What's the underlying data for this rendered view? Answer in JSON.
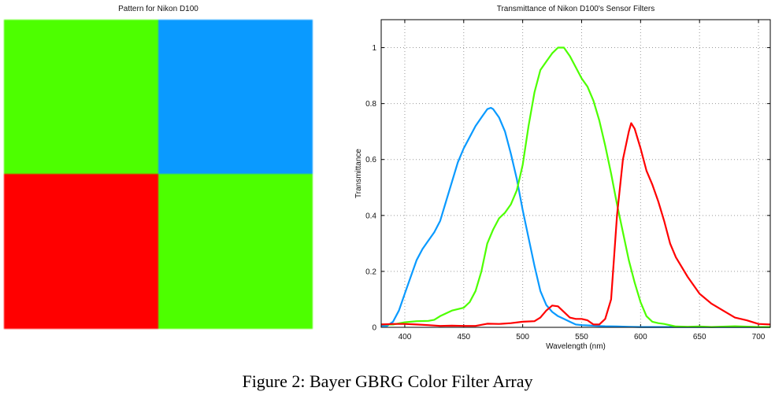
{
  "left_panel": {
    "title": "Pattern for Nikon D100",
    "cells": [
      {
        "name": "G",
        "color": "#4dff00"
      },
      {
        "name": "B",
        "color": "#0a9aff"
      },
      {
        "name": "R",
        "color": "#ff0000"
      },
      {
        "name": "G",
        "color": "#4dff00"
      }
    ]
  },
  "caption": "Figure 2: Bayer GBRG Color Filter Array",
  "chart_data": {
    "type": "line",
    "title": "Transmittance of Nikon D100's Sensor Filters",
    "xlabel": "Wavelength (nm)",
    "ylabel": "Transmittance",
    "xlim": [
      380,
      710
    ],
    "ylim": [
      0,
      1.1
    ],
    "xticks": [
      400,
      450,
      500,
      550,
      600,
      650,
      700
    ],
    "yticks": [
      0,
      0.2,
      0.4,
      0.6,
      0.8,
      1
    ],
    "ytick_labels": [
      "0",
      "0.2",
      "0.4",
      "0.6",
      "0.8",
      "1"
    ],
    "grid": true,
    "series": [
      {
        "name": "Blue",
        "color": "#0a9aff",
        "x": [
          380,
          385,
          390,
          395,
          400,
          405,
          410,
          415,
          420,
          425,
          430,
          435,
          440,
          445,
          450,
          455,
          460,
          465,
          470,
          473,
          475,
          480,
          485,
          490,
          495,
          500,
          505,
          510,
          515,
          520,
          525,
          530,
          535,
          540,
          545,
          550,
          560,
          570,
          580,
          590,
          600,
          650,
          710
        ],
        "y": [
          0.005,
          0.005,
          0.02,
          0.06,
          0.12,
          0.18,
          0.24,
          0.28,
          0.31,
          0.34,
          0.38,
          0.45,
          0.52,
          0.59,
          0.64,
          0.68,
          0.72,
          0.75,
          0.78,
          0.785,
          0.78,
          0.75,
          0.7,
          0.62,
          0.53,
          0.42,
          0.32,
          0.22,
          0.13,
          0.08,
          0.055,
          0.04,
          0.03,
          0.02,
          0.01,
          0.008,
          0.006,
          0.004,
          0.003,
          0.002,
          0.001,
          0.001,
          0.001
        ]
      },
      {
        "name": "Green",
        "color": "#4dff00",
        "x": [
          380,
          390,
          400,
          410,
          420,
          425,
          430,
          440,
          450,
          455,
          460,
          465,
          470,
          475,
          480,
          485,
          490,
          495,
          500,
          505,
          510,
          515,
          520,
          525,
          530,
          535,
          540,
          545,
          550,
          555,
          560,
          565,
          570,
          575,
          580,
          585,
          590,
          595,
          600,
          605,
          610,
          615,
          620,
          630,
          640,
          650,
          660,
          680,
          700,
          710
        ],
        "y": [
          0.01,
          0.01,
          0.018,
          0.022,
          0.023,
          0.027,
          0.04,
          0.06,
          0.07,
          0.09,
          0.13,
          0.2,
          0.3,
          0.35,
          0.39,
          0.41,
          0.44,
          0.49,
          0.58,
          0.72,
          0.84,
          0.92,
          0.95,
          0.98,
          1.0,
          1.0,
          0.97,
          0.93,
          0.89,
          0.86,
          0.81,
          0.74,
          0.65,
          0.55,
          0.44,
          0.34,
          0.24,
          0.16,
          0.09,
          0.04,
          0.02,
          0.015,
          0.012,
          0.003,
          0.002,
          0.003,
          0.001,
          0.004,
          0.001,
          0.001
        ]
      },
      {
        "name": "Red",
        "color": "#ff0000",
        "x": [
          380,
          390,
          400,
          410,
          420,
          430,
          440,
          450,
          460,
          470,
          480,
          490,
          500,
          510,
          515,
          520,
          525,
          530,
          535,
          540,
          545,
          550,
          555,
          560,
          565,
          570,
          575,
          580,
          585,
          590,
          592,
          595,
          600,
          605,
          610,
          615,
          620,
          625,
          630,
          640,
          650,
          660,
          670,
          680,
          690,
          700,
          710
        ],
        "y": [
          0.01,
          0.012,
          0.012,
          0.01,
          0.008,
          0.005,
          0.006,
          0.005,
          0.005,
          0.013,
          0.012,
          0.015,
          0.02,
          0.022,
          0.035,
          0.06,
          0.078,
          0.075,
          0.055,
          0.035,
          0.03,
          0.03,
          0.025,
          0.01,
          0.01,
          0.03,
          0.1,
          0.4,
          0.6,
          0.7,
          0.73,
          0.71,
          0.64,
          0.56,
          0.51,
          0.45,
          0.38,
          0.3,
          0.25,
          0.18,
          0.12,
          0.085,
          0.06,
          0.035,
          0.025,
          0.012,
          0.01
        ]
      }
    ]
  }
}
